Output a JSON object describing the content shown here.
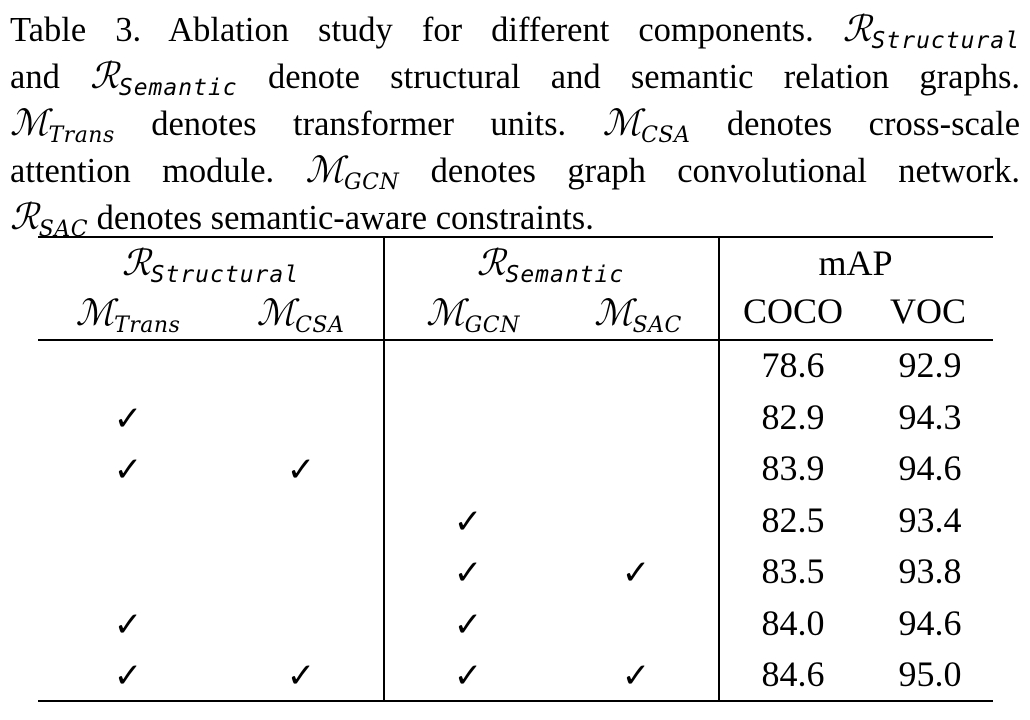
{
  "caption": {
    "line1_a": "Table 3. Ablation study for different components.",
    "line1_sym": "ℛ",
    "line1_sub": "Structural",
    "line2_a": "and",
    "line2_sym": "ℛ",
    "line2_sub": "Semantic",
    "line2_b": "denote structural and semantic relation graphs.",
    "line3_sym1": "ℳ",
    "line3_sub1": "Trans",
    "line3_a": "denotes transformer units.",
    "line3_sym2": "ℳ",
    "line3_sub2": "CSA",
    "line3_b": "denotes cross-scale",
    "line4_a": "attention module.",
    "line4_sym": "ℳ",
    "line4_sub": "GCN",
    "line4_b": "denotes graph convolutional network.",
    "line5_sym": "ℛ",
    "line5_sub": "SAC",
    "line5_b": "denotes semantic-aware constraints."
  },
  "table": {
    "group_headers": [
      {
        "sym": "ℛ",
        "sub": "Structural"
      },
      {
        "sym": "ℛ",
        "sub": "Semantic"
      },
      {
        "label": "mAP"
      }
    ],
    "sub_headers": [
      {
        "sym": "ℳ",
        "sub": "Trans"
      },
      {
        "sym": "ℳ",
        "sub": "CSA"
      },
      {
        "sym": "ℳ",
        "sub": "GCN"
      },
      {
        "sym": "ℳ",
        "sub": "SAC"
      },
      {
        "label": "COCO"
      },
      {
        "label": "VOC"
      }
    ],
    "check_symbol": "✓",
    "rows": [
      {
        "trans": false,
        "csa": false,
        "gcn": false,
        "sac": false,
        "coco": "78.6",
        "voc": "92.9"
      },
      {
        "trans": true,
        "csa": false,
        "gcn": false,
        "sac": false,
        "coco": "82.9",
        "voc": "94.3"
      },
      {
        "trans": true,
        "csa": true,
        "gcn": false,
        "sac": false,
        "coco": "83.9",
        "voc": "94.6"
      },
      {
        "trans": false,
        "csa": false,
        "gcn": true,
        "sac": false,
        "coco": "82.5",
        "voc": "93.4"
      },
      {
        "trans": false,
        "csa": false,
        "gcn": true,
        "sac": true,
        "coco": "83.5",
        "voc": "93.8"
      },
      {
        "trans": true,
        "csa": false,
        "gcn": true,
        "sac": false,
        "coco": "84.0",
        "voc": "94.6"
      },
      {
        "trans": true,
        "csa": true,
        "gcn": true,
        "sac": true,
        "coco": "84.6",
        "voc": "95.0"
      }
    ]
  }
}
